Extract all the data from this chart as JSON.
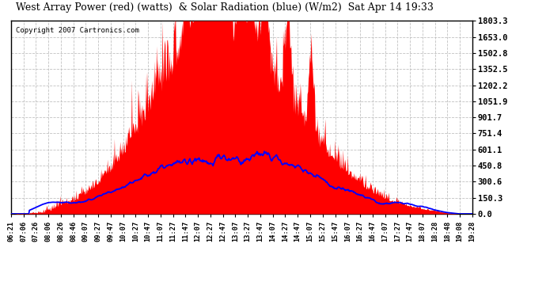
{
  "title": "West Array Power (red) (watts)  & Solar Radiation (blue) (W/m2)  Sat Apr 14 19:33",
  "copyright": "Copyright 2007 Cartronics.com",
  "ymax": 1803.3,
  "yticks": [
    0.0,
    150.3,
    300.6,
    450.8,
    601.1,
    751.4,
    901.7,
    1051.9,
    1202.2,
    1352.5,
    1502.8,
    1653.0,
    1803.3
  ],
  "xtick_labels": [
    "06:21",
    "07:06",
    "07:26",
    "08:06",
    "08:26",
    "08:46",
    "09:07",
    "09:27",
    "09:47",
    "10:07",
    "10:27",
    "10:47",
    "11:07",
    "11:27",
    "11:47",
    "12:07",
    "12:27",
    "12:47",
    "13:07",
    "13:27",
    "13:47",
    "14:07",
    "14:27",
    "14:47",
    "15:07",
    "15:27",
    "15:47",
    "16:07",
    "16:27",
    "16:47",
    "17:07",
    "17:27",
    "17:47",
    "18:07",
    "18:28",
    "18:48",
    "19:08",
    "19:28"
  ],
  "background_color": "#ffffff",
  "fill_color": "#ff0000",
  "line_color": "#0000ff",
  "grid_color": "#bbbbbb"
}
